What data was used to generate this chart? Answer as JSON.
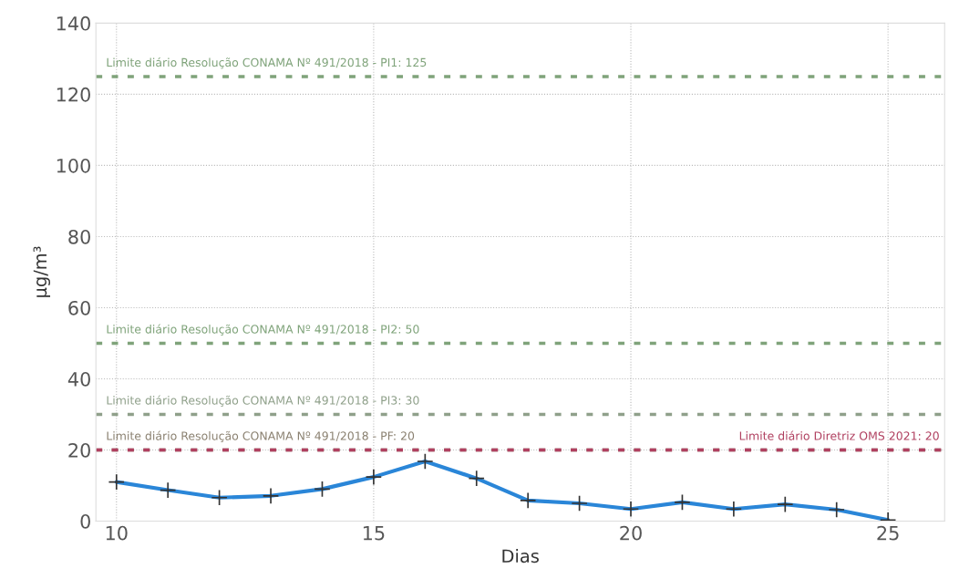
{
  "chart_data": {
    "type": "line",
    "xlabel": "Dias",
    "ylabel": "µg/m³",
    "x": [
      10,
      11,
      12,
      13,
      14,
      15,
      16,
      17,
      18,
      19,
      20,
      21,
      22,
      23,
      24,
      25
    ],
    "series": [
      {
        "color": "#2a86d8",
        "values": [
          11,
          8.7,
          6.6,
          7.1,
          9,
          12.4,
          16.8,
          12,
          5.8,
          5,
          3.4,
          5.3,
          3.4,
          4.7,
          3.2,
          0.3
        ]
      }
    ],
    "xlim": [
      9.6,
      26.1
    ],
    "xticks": [
      10,
      15,
      20,
      25
    ],
    "ylim": [
      0,
      140
    ],
    "yticks": [
      0,
      20,
      40,
      60,
      80,
      100,
      120,
      140
    ],
    "grid": true,
    "marker": "cross",
    "line_style": "solid",
    "ref_lines": [
      {
        "axis": "y",
        "value": 125,
        "label": "Limite diário Resolução CONAMA Nº 491/2018 - PI1: 125",
        "color": "#7fa37a",
        "line_style": "dashed"
      },
      {
        "axis": "y",
        "value": 50,
        "label": "Limite diário Resolução CONAMA Nº 491/2018 - PI2: 50",
        "color": "#7fa37a",
        "line_style": "dashed"
      },
      {
        "axis": "y",
        "value": 30,
        "label": "Limite diário Resolução CONAMA Nº 491/2018 - PI3: 30",
        "color": "#8fa08a",
        "line_style": "dashed"
      },
      {
        "axis": "y",
        "value": 20,
        "label": "Limite diário Resolução CONAMA Nº 491/2018 - PF: 20",
        "color": "#8a8070",
        "line_style": "dashed"
      },
      {
        "axis": "y",
        "value": 20,
        "label": "Limite diário Diretriz OMS 2021: 20",
        "color": "#b04060",
        "line_style": "dashed"
      }
    ]
  }
}
